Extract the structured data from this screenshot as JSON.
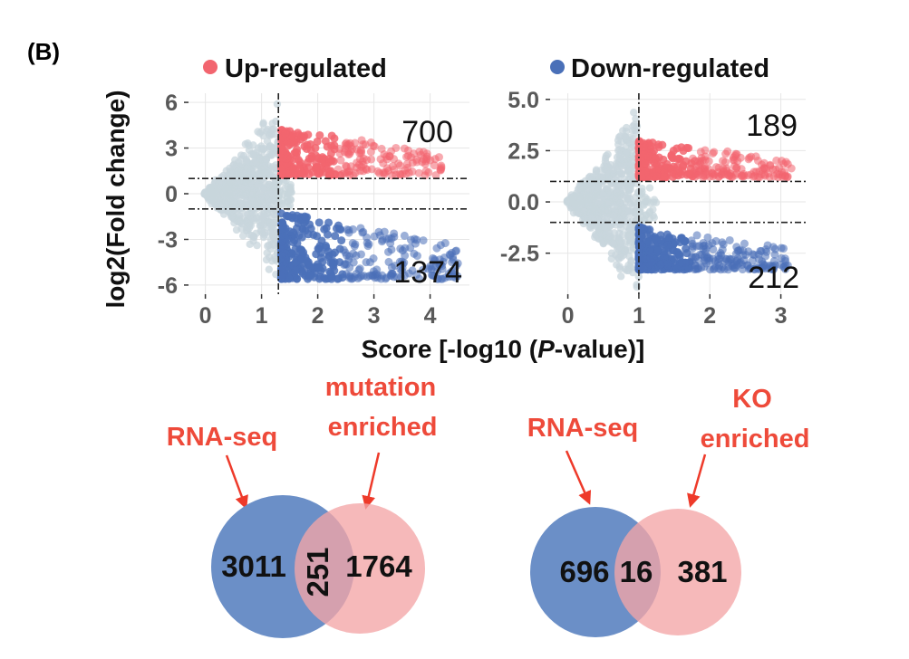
{
  "panel_label": "(B)",
  "colors": {
    "up": "#f2656f",
    "down": "#4a70b8",
    "background_points": "#c8d6dc",
    "venn_left": "#6b8fc7",
    "venn_right": "#f3a5a6",
    "venn_text": "#ee4a3a",
    "grid": "#e6e6e6",
    "tick_text": "#595959"
  },
  "legend": {
    "up_label": "Up-regulated",
    "down_label": "Down-regulated"
  },
  "axes": {
    "ylabel": "log2(Fold change)",
    "xlabel_prefix": "Score [-log10 (",
    "xlabel_italic": "P",
    "xlabel_suffix": "-value)]"
  },
  "chart_data": [
    {
      "type": "scatter",
      "name": "volcano-left",
      "xlim": [
        -0.3,
        4.7
      ],
      "ylim": [
        -6.6,
        6.6
      ],
      "x_ticks": [
        0,
        1,
        2,
        3,
        4
      ],
      "x_tick_labels": [
        "0",
        "1",
        "2",
        "3",
        "4"
      ],
      "y_ticks": [
        6,
        3,
        0,
        -3,
        -6
      ],
      "y_tick_labels": [
        "6",
        "3",
        "0",
        "-3",
        "-6"
      ],
      "threshold_x": 1.3,
      "threshold_y": [
        1,
        -1
      ],
      "grid": true,
      "counts": {
        "up": "700",
        "down": "1374"
      },
      "up_region": {
        "x": [
          1.35,
          4.2
        ],
        "y": [
          1.2,
          4.3
        ]
      },
      "down_region": {
        "x": [
          1.35,
          4.5
        ],
        "y": [
          -5.6,
          -1.2
        ]
      }
    },
    {
      "type": "scatter",
      "name": "volcano-right",
      "xlim": [
        -0.25,
        3.35
      ],
      "ylim": [
        -4.5,
        5.3
      ],
      "x_ticks": [
        0,
        1,
        2,
        3
      ],
      "x_tick_labels": [
        "0",
        "1",
        "2",
        "3"
      ],
      "y_ticks": [
        5.0,
        2.5,
        0.0,
        -2.5
      ],
      "y_tick_labels": [
        "5.0",
        "2.5",
        "0.0",
        "-2.5"
      ],
      "threshold_x": 1.0,
      "threshold_y": [
        1,
        -1
      ],
      "grid": true,
      "counts": {
        "up": "189",
        "down": "212"
      },
      "up_region": {
        "x": [
          1.0,
          3.15
        ],
        "y": [
          1.2,
          3.0
        ]
      },
      "down_region": {
        "x": [
          1.0,
          3.1
        ],
        "y": [
          -3.3,
          -1.2
        ]
      }
    }
  ],
  "venn": [
    {
      "label_left": "RNA-seq",
      "label_right_line1": "mutation",
      "label_right_line2": "enriched",
      "left_only": "3011",
      "overlap": "251",
      "right_only": "1764"
    },
    {
      "label_left": "RNA-seq",
      "label_right_line1": "KO",
      "label_right_line2": "enriched",
      "left_only": "696",
      "overlap": "16",
      "right_only": "381"
    }
  ]
}
